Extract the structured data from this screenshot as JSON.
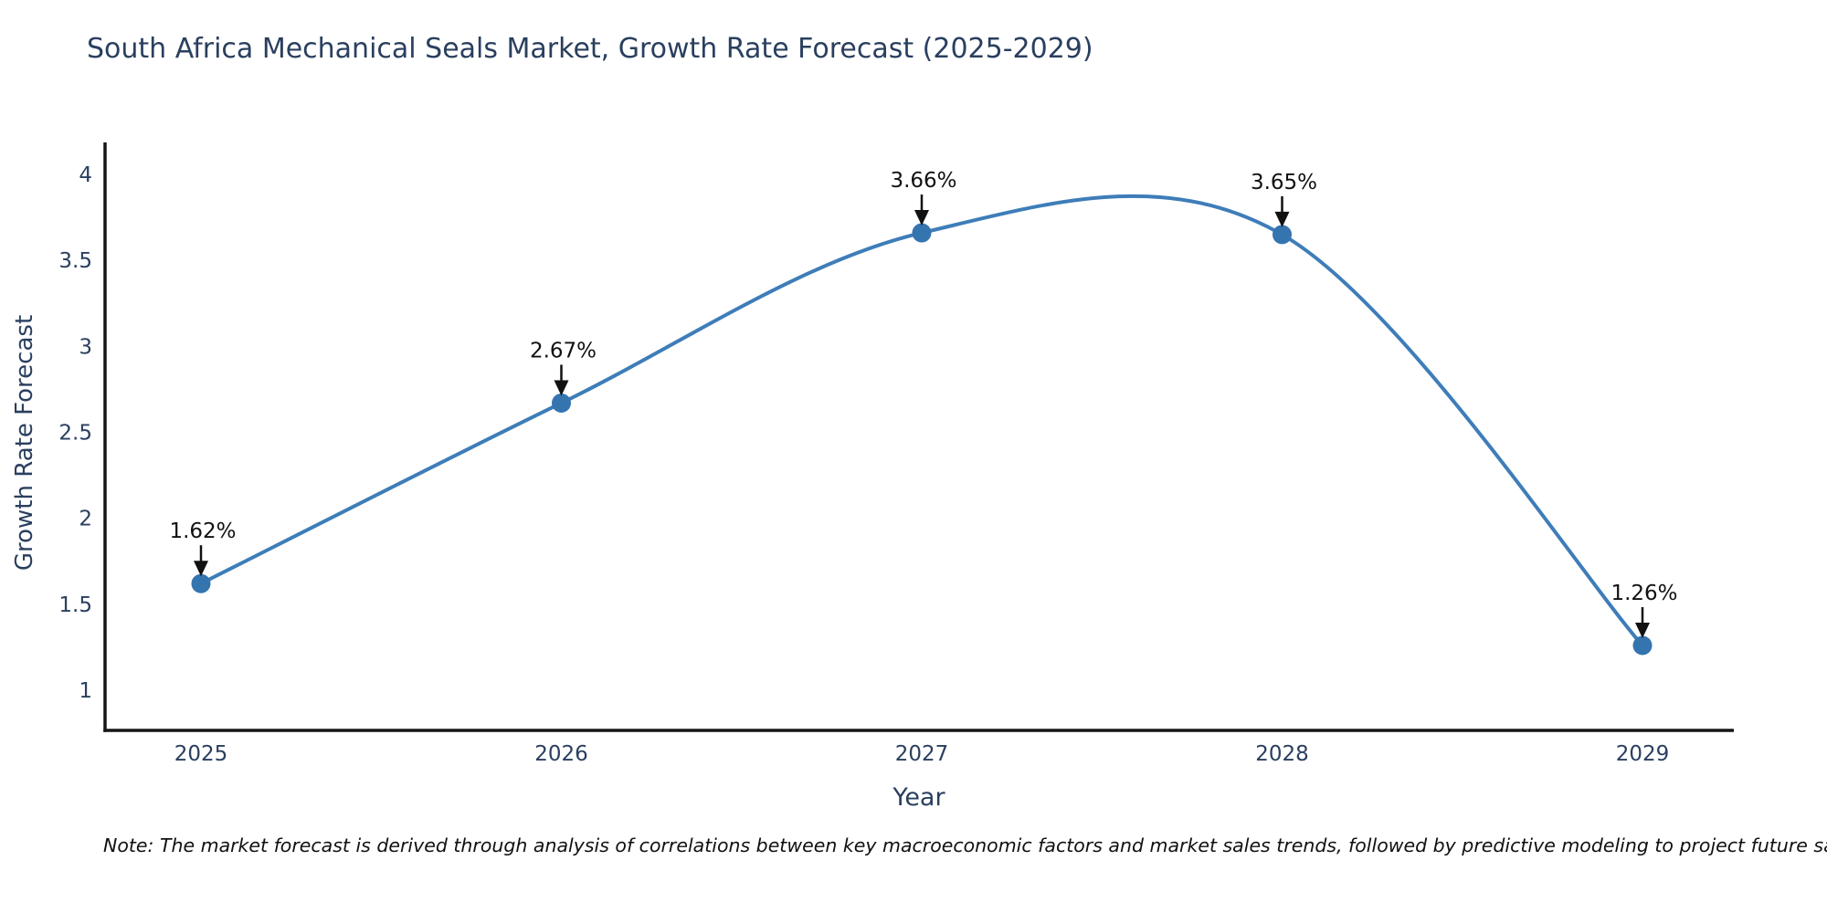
{
  "title": "South Africa Mechanical Seals Market, Growth Rate Forecast (2025-2029)",
  "note": "Note: The market forecast is derived through analysis of correlations between key macroeconomic factors and market sales trends, followed by predictive modeling to project future sales",
  "chart_data": {
    "type": "line",
    "line_shape": "spline",
    "title": "South Africa Mechanical Seals Market, Growth Rate Forecast (2025-2029)",
    "xlabel": "Year",
    "ylabel": "Growth Rate Forecast",
    "x": [
      2025,
      2026,
      2027,
      2028,
      2029
    ],
    "values": [
      1.62,
      2.67,
      3.66,
      3.65,
      1.26
    ],
    "point_labels": [
      "1.62%",
      "2.67%",
      "3.66%",
      "3.65%",
      "1.26%"
    ],
    "xticklabels": [
      "2025",
      "2026",
      "2027",
      "2028",
      "2029"
    ],
    "yticks": [
      1,
      1.5,
      2,
      2.5,
      3,
      3.5,
      4
    ],
    "ytick_labels": [
      "1",
      "1.5",
      "2",
      "2.5",
      "3",
      "3.5",
      "4"
    ],
    "ylim": [
      0.766,
      4.186
    ],
    "grid": false,
    "legend": "none",
    "colors": {
      "line": "#3e7db8",
      "marker": "#3474af",
      "axis": "#161616",
      "tick_text": "#2a3f5f",
      "annotation": "#111111"
    }
  }
}
